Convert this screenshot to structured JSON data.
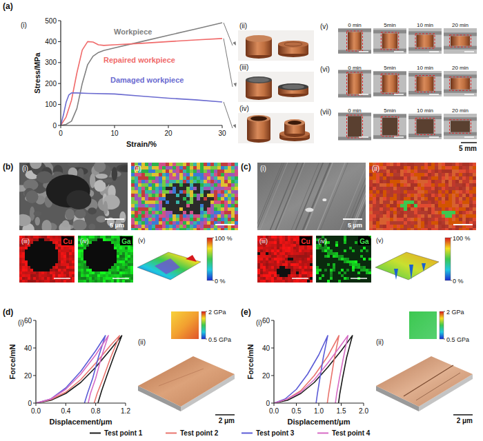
{
  "chart_data": [
    {
      "type": "line",
      "xlabel": "Strain/%",
      "ylabel": "Stress/MPa",
      "xlim": [
        0,
        30
      ],
      "ylim": [
        0,
        500
      ],
      "xticks": [
        0,
        10,
        20,
        30
      ],
      "yticks": [
        0,
        100,
        200,
        300,
        400,
        500
      ],
      "series": [
        {
          "name": "Workpiece",
          "color": "#808080",
          "x": [
            0,
            1,
            2,
            3,
            4,
            5,
            6,
            7,
            8,
            10,
            15,
            20,
            25,
            30
          ],
          "values": [
            0,
            5,
            20,
            80,
            200,
            290,
            330,
            348,
            358,
            370,
            400,
            430,
            460,
            490
          ]
        },
        {
          "name": "Repaired workpiece",
          "color": "#f06a6a",
          "x": [
            0,
            1,
            2,
            3,
            4,
            5,
            6,
            7,
            8,
            10,
            15,
            20,
            25,
            30
          ],
          "values": [
            0,
            40,
            120,
            250,
            360,
            400,
            398,
            385,
            382,
            385,
            392,
            400,
            408,
            415
          ]
        },
        {
          "name": "Damaged workpiece",
          "color": "#6b6bd0",
          "x": [
            0,
            0.5,
            1,
            1.5,
            2,
            3,
            5,
            10,
            15,
            20,
            25,
            30
          ],
          "values": [
            0,
            50,
            110,
            145,
            155,
            155,
            153,
            150,
            140,
            130,
            122,
            112
          ]
        }
      ]
    },
    {
      "type": "line",
      "xlabel": "Displacement/μm",
      "ylabel": "Force/mN",
      "xlim": [
        0,
        1.2
      ],
      "ylim": [
        0,
        60
      ],
      "xticks": [
        {
          "value": 0,
          "label": "0.0"
        },
        0.4,
        0.8,
        1.2
      ],
      "yticks": [
        0,
        20,
        40,
        60
      ],
      "legend": "bottom",
      "series": [
        {
          "name": "Test point 1",
          "color": "#1a1a1a",
          "x": [
            0,
            0.2,
            0.4,
            0.6,
            0.8,
            1.0,
            1.15,
            1.05,
            0.95,
            0.88,
            0.83
          ],
          "values": [
            0,
            2,
            7,
            15,
            26,
            39,
            49,
            35,
            20,
            9,
            0
          ]
        },
        {
          "name": "Test point 2",
          "color": "#e9746d",
          "x": [
            0,
            0.2,
            0.4,
            0.6,
            0.8,
            1.0,
            1.12,
            1.0,
            0.9,
            0.82,
            0.78
          ],
          "values": [
            0,
            2.5,
            8,
            17,
            29,
            42,
            49,
            33,
            18,
            7,
            0
          ]
        },
        {
          "name": "Test point 3",
          "color": "#5b5bd6",
          "x": [
            0,
            0.2,
            0.4,
            0.6,
            0.8,
            0.93,
            0.84,
            0.76,
            0.69,
            0.65
          ],
          "values": [
            0,
            3,
            11,
            23,
            38,
            49,
            34,
            18,
            7,
            0
          ]
        },
        {
          "name": "Test point 4",
          "color": "#d66bc4",
          "x": [
            0,
            0.2,
            0.4,
            0.6,
            0.8,
            0.97,
            0.88,
            0.8,
            0.73,
            0.7
          ],
          "values": [
            0,
            3,
            10,
            21,
            35,
            49,
            34,
            18,
            7,
            0
          ]
        }
      ]
    },
    {
      "type": "line",
      "xlabel": "Displacement/μm",
      "ylabel": "Force/mN",
      "xlim": [
        0,
        2.0
      ],
      "ylim": [
        0,
        60
      ],
      "xticks": [
        {
          "value": 0,
          "label": "0.0"
        },
        0.5,
        {
          "value": 1,
          "label": "1.0"
        },
        1.5,
        {
          "value": 2,
          "label": "2.0"
        }
      ],
      "yticks": [
        0,
        20,
        40,
        60
      ],
      "series": [
        {
          "color": "#1a1a1a",
          "x": [
            0,
            0.3,
            0.6,
            0.9,
            1.2,
            1.5,
            1.75,
            1.62,
            1.53,
            1.47,
            1.44
          ],
          "values": [
            0,
            2,
            7,
            15,
            26,
            38,
            49,
            33,
            18,
            7,
            0
          ]
        },
        {
          "color": "#e9746d",
          "x": [
            0,
            0.3,
            0.6,
            0.9,
            1.2,
            1.45,
            1.35,
            1.27,
            1.22,
            1.19
          ],
          "values": [
            0,
            3,
            9,
            20,
            34,
            49,
            33,
            17,
            7,
            0
          ]
        },
        {
          "color": "#5b5bd6",
          "x": [
            0,
            0.25,
            0.5,
            0.75,
            1.0,
            1.2,
            1.1,
            1.02,
            0.97,
            0.94
          ],
          "values": [
            0,
            3,
            10,
            21,
            35,
            49,
            33,
            17,
            7,
            0
          ]
        },
        {
          "color": "#d66bc4",
          "x": [
            0,
            0.3,
            0.6,
            0.9,
            1.2,
            1.45,
            1.65,
            1.55,
            1.46,
            1.4,
            1.37
          ],
          "values": [
            0,
            3,
            8,
            17,
            29,
            40,
            49,
            33,
            18,
            7,
            0
          ]
        }
      ]
    }
  ],
  "figure": {
    "panel_labels": [
      "(a)",
      "(b)",
      "(c)",
      "(d)",
      "(e)"
    ],
    "a": {
      "sub_labels": [
        "(i)",
        "(ii)",
        "(iii)",
        "(iv)",
        "(v)",
        "(vi)",
        "(vii)"
      ],
      "times": [
        "0 min",
        "5min",
        "10 min",
        "20 min"
      ],
      "scale": "5 mm"
    },
    "b": {
      "sub_labels": [
        "(i)",
        "(ii)",
        "(iii)",
        "(iv)",
        "(v)"
      ],
      "scale": "5 μm",
      "maps": [
        "Cu",
        "Ga"
      ],
      "colorbar": {
        "range": [
          0,
          100
        ],
        "ticks": [
          {
            "value": 100,
            "label": "100 %"
          },
          {
            "value": 0,
            "label": "0 %"
          }
        ]
      }
    },
    "c": {
      "sub_labels": [
        "(i)",
        "(ii)",
        "(iii)",
        "(iv)",
        "(v)"
      ],
      "scale": "5 μm",
      "maps": [
        "Cu",
        "Ga"
      ],
      "colorbar": {
        "range": [
          0,
          100
        ],
        "ticks": [
          {
            "value": 100,
            "label": "100 %"
          },
          {
            "value": 0,
            "label": "0 %"
          }
        ]
      }
    },
    "d": {
      "sub_labels": [
        "(i)",
        "(ii)"
      ],
      "scale": "2 μm",
      "colorbar": {
        "range": [
          0.5,
          2
        ],
        "ticks": [
          {
            "value": 2,
            "label": "2 GPa"
          },
          {
            "value": 0.5,
            "label": "0.5 GPa"
          }
        ]
      }
    },
    "e": {
      "sub_labels": [
        "(i)",
        "(ii)"
      ],
      "scale": "2 μm",
      "colorbar": {
        "range": [
          0.5,
          2
        ],
        "ticks": [
          {
            "value": 2,
            "label": "2 GPa"
          },
          {
            "value": 0.5,
            "label": "0.5 GPa"
          }
        ]
      }
    }
  }
}
